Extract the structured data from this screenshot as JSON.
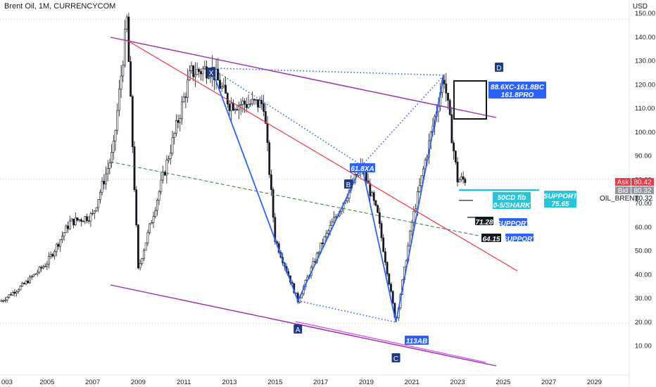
{
  "header": {
    "title": "Brent Oil, 1M, CURRENCYCOM",
    "currency": "USD"
  },
  "chart_data": {
    "type": "candlestick",
    "title": "Brent Oil, 1M, CURRENCYCOM",
    "symbol": "OIL_BRENT",
    "x_ticks": [
      "003",
      "2005",
      "2007",
      "2009",
      "2011",
      "2013",
      "2015",
      "2017",
      "2019",
      "2021",
      "2023",
      "2025",
      "2027",
      "2029"
    ],
    "y_ticks": [
      10,
      20,
      30,
      40,
      50,
      60,
      70,
      80,
      90,
      100,
      110,
      120,
      130,
      140,
      150
    ],
    "ylim": [
      6,
      158
    ],
    "xlim": [
      2003.0,
      2030.3
    ],
    "grid": false,
    "pattern_points": [
      {
        "label": "X",
        "date": 2012.2,
        "price": 127
      },
      {
        "label": "A",
        "date": 2016.0,
        "price": 29
      },
      {
        "label": "B",
        "date": 2018.8,
        "price": 86
      },
      {
        "label": "C",
        "date": 2020.3,
        "price": 20
      },
      {
        "label": "D",
        "date": 2022.4,
        "price": 124
      }
    ],
    "pattern_labels": {
      "x": "X",
      "a": "A",
      "b": "B",
      "c": "C",
      "d": "D",
      "xa": "61.8XA",
      "ab": "113AB",
      "prz": "88.6XC-161.8BC\n161.8PRO",
      "cd": "50CD fib\n0-5/SHARK"
    },
    "levels": {
      "support_main": {
        "value": 75.65,
        "label": "SUPPORT\n75.65"
      },
      "support_1": {
        "value": 71.28,
        "label": "SUPPORT"
      },
      "support_2": {
        "value": 64.15,
        "label": "SUPPORT"
      }
    },
    "price_tags": {
      "ask_label": "Ask",
      "ask_value": "80.42",
      "bid_label": "Bid",
      "bid_value": "80.32",
      "last": "80.32"
    },
    "ohlc_monthly_approx": [
      {
        "date": 2003.0,
        "close": 29
      },
      {
        "date": 2004.0,
        "close": 36
      },
      {
        "date": 2005.0,
        "close": 45
      },
      {
        "date": 2006.0,
        "close": 62
      },
      {
        "date": 2007.0,
        "close": 65
      },
      {
        "date": 2007.9,
        "close": 92
      },
      {
        "date": 2008.5,
        "close": 147
      },
      {
        "date": 2009.0,
        "close": 42
      },
      {
        "date": 2010.0,
        "close": 78
      },
      {
        "date": 2011.3,
        "close": 125
      },
      {
        "date": 2012.2,
        "close": 127
      },
      {
        "date": 2013.0,
        "close": 112
      },
      {
        "date": 2014.5,
        "close": 112
      },
      {
        "date": 2015.0,
        "close": 55
      },
      {
        "date": 2016.0,
        "close": 29
      },
      {
        "date": 2017.0,
        "close": 52
      },
      {
        "date": 2018.8,
        "close": 86
      },
      {
        "date": 2019.5,
        "close": 65
      },
      {
        "date": 2020.3,
        "close": 20
      },
      {
        "date": 2021.0,
        "close": 62
      },
      {
        "date": 2022.4,
        "close": 124
      },
      {
        "date": 2023.0,
        "close": 80
      }
    ]
  },
  "colors": {
    "pattern": "#2962ff",
    "channel": "#9c27b0",
    "trendline": "#f23645",
    "ma": "#2e7d32",
    "level": "#26c6da"
  }
}
